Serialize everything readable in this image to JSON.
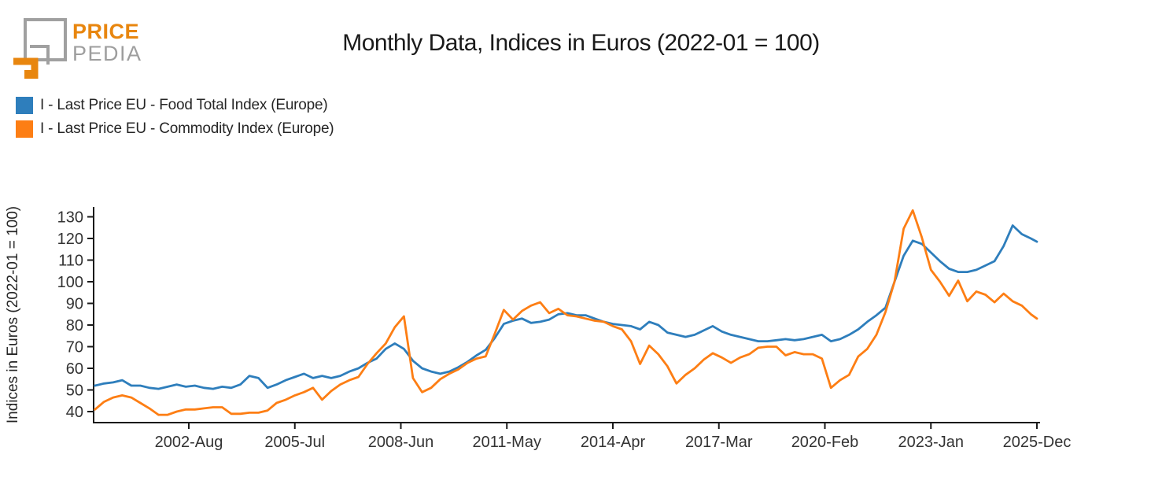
{
  "logo": {
    "brand_top": "PRICE",
    "brand_bottom": "PEDIA",
    "orange": "#e8860f",
    "gray": "#9e9e9e"
  },
  "title": "Monthly Data, Indices in Euros (2022-01 = 100)",
  "legend": [
    {
      "label": "I - Last Price EU - Food Total Index (Europe)",
      "color": "#2e7ebc"
    },
    {
      "label": "I - Last Price EU - Commodity Index (Europe)",
      "color": "#fd7e14"
    }
  ],
  "chart_data": {
    "type": "line",
    "title": "Monthly Data, Indices in Euros (2022-01 = 100)",
    "xlabel": "",
    "ylabel": "Indices in Euros (2022-01 = 100)",
    "x_start": "2000-01",
    "x_end": "2025-12",
    "sample_interval_months": 3,
    "total_months": 311,
    "x_tick_labels": [
      "2002-Aug",
      "2005-Jul",
      "2008-Jun",
      "2011-May",
      "2014-Apr",
      "2017-Mar",
      "2020-Feb",
      "2023-Jan",
      "2025-Dec"
    ],
    "x_tick_month_indices": [
      31,
      66,
      101,
      136,
      171,
      206,
      241,
      276,
      311
    ],
    "y_ticks": [
      40,
      50,
      60,
      70,
      80,
      90,
      100,
      110,
      120,
      130
    ],
    "ylim": [
      35,
      134.5
    ],
    "grid": false,
    "legend_position": "top-left",
    "axis_color": "#1a1a1a",
    "series": [
      {
        "name": "I - Last Price EU - Food Total Index (Europe)",
        "color": "#2e7ebc",
        "values": [
          52,
          53,
          53.5,
          54.5,
          52,
          52,
          51,
          50.5,
          51.5,
          52.5,
          51.5,
          52,
          51,
          50.5,
          51.5,
          51,
          52.5,
          56.5,
          55.5,
          51,
          52.5,
          54.5,
          56,
          57.5,
          55.5,
          56.5,
          55.5,
          56.5,
          58.5,
          60,
          62.5,
          64.5,
          69,
          71.5,
          69,
          63.5,
          60,
          58.5,
          57.5,
          58.5,
          60.5,
          63,
          66,
          68.5,
          74,
          80.5,
          82,
          83,
          81,
          81.5,
          82.5,
          85,
          85.5,
          84.5,
          84.5,
          83,
          81.5,
          80.5,
          80,
          79.5,
          78,
          81.5,
          80,
          76.5,
          75.5,
          74.5,
          75.5,
          77.5,
          79.5,
          77,
          75.5,
          74.5,
          73.5,
          72.5,
          72.5,
          73,
          73.5,
          73,
          73.5,
          74.5,
          75.5,
          72.5,
          73.5,
          75.5,
          78,
          81.5,
          84.5,
          88,
          100,
          112,
          119,
          117.5,
          113.5,
          109.5,
          106,
          104.5,
          104.5,
          105.5,
          107.5,
          109.5,
          116.5,
          126,
          122,
          120,
          118.5
        ]
      },
      {
        "name": "I - Last Price EU - Commodity Index (Europe)",
        "color": "#fd7e14",
        "values": [
          41,
          44.5,
          46.5,
          47.5,
          46.5,
          44,
          41.5,
          38.5,
          38.5,
          40,
          41,
          41,
          41.5,
          42,
          42,
          39,
          39,
          39.5,
          39.5,
          40.5,
          44,
          45.5,
          47.5,
          49,
          51,
          45.5,
          49.5,
          52.5,
          54.5,
          56,
          62,
          67,
          71.5,
          79,
          84,
          55.5,
          49,
          51,
          55,
          57.5,
          59.5,
          62.5,
          64.5,
          65.5,
          76,
          87,
          82.5,
          86.5,
          89,
          90.5,
          85.5,
          87.5,
          84.5,
          84,
          83,
          82,
          81.5,
          79.5,
          78,
          72.5,
          62,
          70.5,
          66.5,
          61,
          53,
          57,
          60,
          64,
          67,
          65,
          62.5,
          65,
          66.5,
          69.5,
          70,
          70,
          66,
          67.5,
          66.5,
          66.5,
          64.5,
          51,
          54.5,
          57,
          65.5,
          69,
          75.5,
          86,
          100,
          124.5,
          133,
          120.5,
          105.5,
          100,
          93.5,
          100.5,
          91,
          95.5,
          94,
          90.5,
          94.5,
          91,
          89,
          85,
          83
        ]
      }
    ]
  }
}
